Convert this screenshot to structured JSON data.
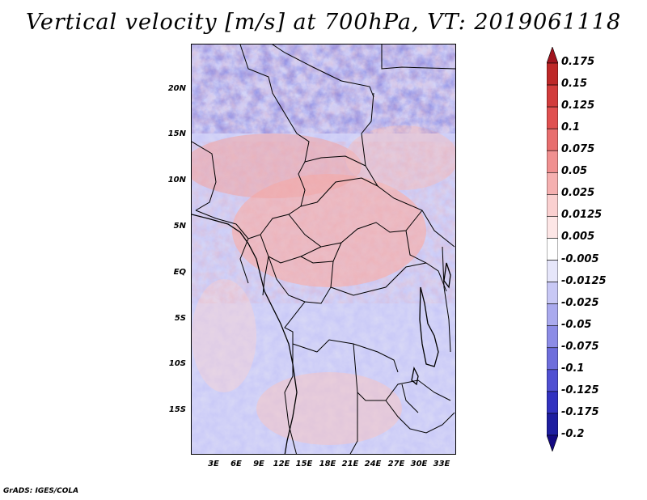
{
  "title": "Vertical velocity [m/s] at 700hPa, VT: 2019061118",
  "footer": "GrADS: IGES/COLA",
  "map": {
    "lat_labels": [
      "20N",
      "15N",
      "10N",
      "5N",
      "EQ",
      "5S",
      "10S",
      "15S"
    ],
    "lon_labels": [
      "3E",
      "6E",
      "9E",
      "12E",
      "15E",
      "18E",
      "21E",
      "24E",
      "27E",
      "30E",
      "33E"
    ],
    "field": "vertical velocity",
    "units": "m/s",
    "level": "700hPa"
  },
  "colorbar": {
    "labels": [
      "0.175",
      "0.15",
      "0.125",
      "0.1",
      "0.075",
      "0.05",
      "0.025",
      "0.0125",
      "0.005",
      "-0.005",
      "-0.0125",
      "-0.025",
      "-0.05",
      "-0.075",
      "-0.1",
      "-0.125",
      "-0.175",
      "-0.2"
    ],
    "colors": [
      "#a0141e",
      "#be2828",
      "#d23c3c",
      "#e05050",
      "#e86e6e",
      "#f09090",
      "#f5b0b0",
      "#fad0d0",
      "#fde6e6",
      "#ffffff",
      "#e6e6fa",
      "#c8c8f5",
      "#aaaaee",
      "#8c8ce6",
      "#6e6edc",
      "#5050d2",
      "#3232c0",
      "#1e1ea0",
      "#140a82"
    ]
  }
}
